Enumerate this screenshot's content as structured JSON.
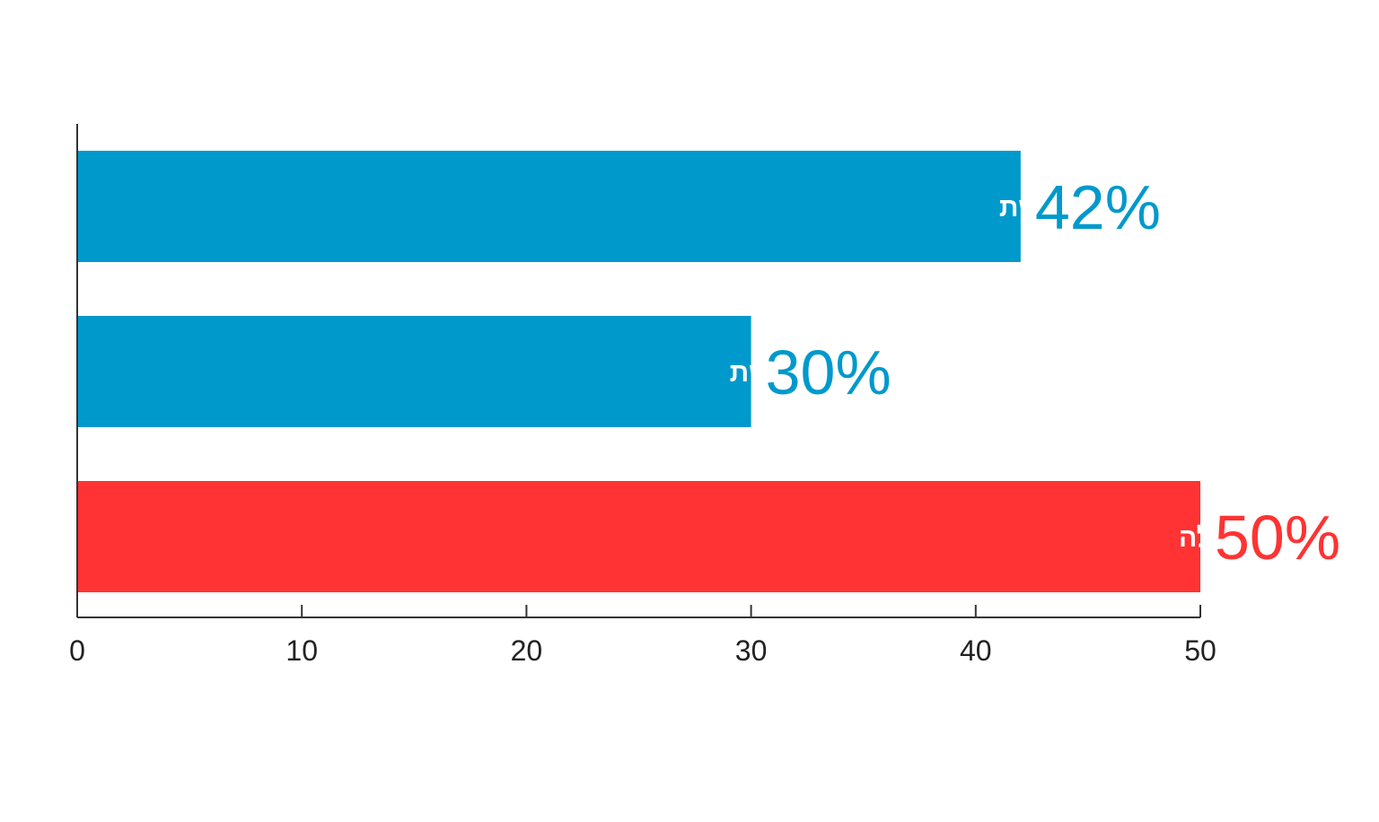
{
  "chart_data": {
    "type": "bar",
    "orientation": "horizontal",
    "title": "",
    "xlabel": "",
    "ylabel": "",
    "xlim": [
      0,
      50
    ],
    "x_ticks": [
      0,
      10,
      20,
      30,
      40,
      50
    ],
    "grid": false,
    "legend": "none",
    "bars": [
      {
        "label": "יש לבית הספר תוכניות המיועדות לטיפול בתלמידים שנפגעו ברשת",
        "value": 42,
        "value_label": "42%",
        "color": "#0099cc"
      },
      {
        "label": "יש לבית הספר תוכניות המיועדות לטיפול בתלמידים שפגעו ברשת",
        "value": 30,
        "value_label": "30%",
        "color": "#0099cc"
      },
      {
        "label": "אין לבית הספר תוכניות טיפול מספקות בתחומים אלה",
        "value": 50,
        "value_label": "50%",
        "color": "#ff3333"
      }
    ],
    "axis_color": "#333333"
  }
}
